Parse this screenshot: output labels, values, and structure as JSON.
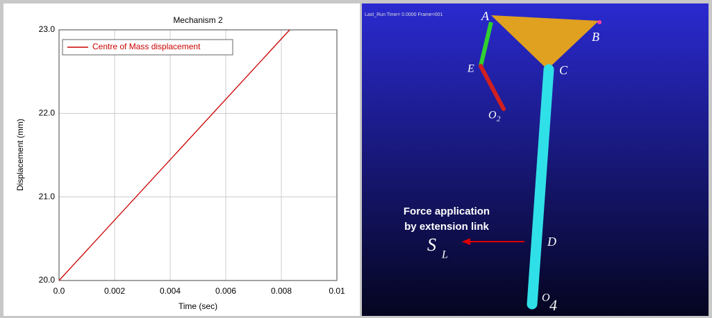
{
  "chart_data": {
    "type": "line",
    "title": "Mechanism 2",
    "x_label": "Time (sec)",
    "y_label": "Displacement (mm)",
    "x": [
      0,
      0.0083
    ],
    "series": [
      {
        "name": "Centre of Mass displacement",
        "color": "#cc0000",
        "values": [
          20,
          23
        ]
      }
    ],
    "xlim": [
      0,
      0.01
    ],
    "xticks": [
      {
        "value": 0,
        "label": "0.0"
      },
      0.002,
      0.004,
      0.006,
      0.008,
      0.01
    ],
    "ylim": [
      20,
      23
    ],
    "yticks": [
      {
        "value": 20,
        "label": "20.0"
      },
      {
        "value": 21,
        "label": "21.0"
      },
      {
        "value": 22,
        "label": "22.0"
      },
      {
        "value": 23,
        "label": "23.0"
      }
    ],
    "grid": true,
    "legend": "upper left"
  },
  "simulation": {
    "status": "Last_Run   Time= 0.0000  Frame=001",
    "points": {
      "A": "A",
      "B": "B",
      "C": "C",
      "E": "E",
      "D": "D",
      "O2": {
        "main": "O",
        "sub": "2"
      },
      "O4": {
        "main": "O",
        "sub": "4"
      },
      "SL": {
        "main": "S",
        "sub": "L"
      }
    },
    "annotation": [
      "Force application",
      "by extension link"
    ]
  }
}
